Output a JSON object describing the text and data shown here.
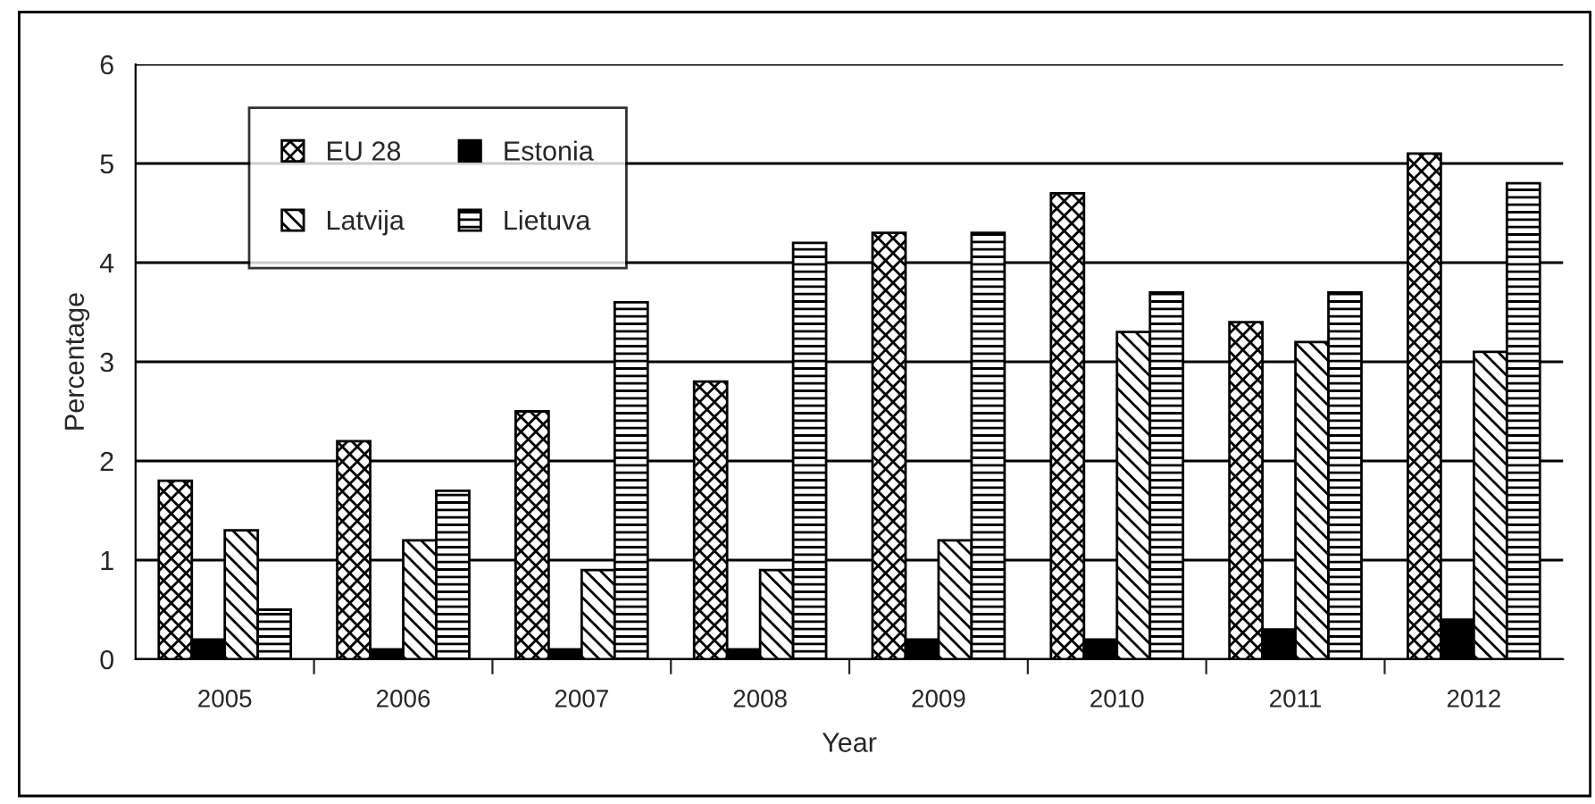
{
  "chart_data": {
    "type": "bar",
    "xlabel": "Year",
    "ylabel": "Percentage",
    "categories": [
      "2005",
      "2006",
      "2007",
      "2008",
      "2009",
      "2010",
      "2011",
      "2012"
    ],
    "series": [
      {
        "name": "EU 28",
        "color": "#000000",
        "values": [
          1.8,
          2.2,
          2.5,
          2.8,
          4.3,
          4.7,
          3.4,
          5.1
        ]
      },
      {
        "name": "Estonia",
        "color": "#000000",
        "values": [
          0.2,
          0.1,
          0.1,
          0.1,
          0.2,
          0.2,
          0.3,
          0.4
        ]
      },
      {
        "name": "Latvija",
        "color": "#000000",
        "values": [
          1.3,
          1.2,
          0.9,
          0.9,
          1.2,
          3.3,
          3.2,
          3.1
        ]
      },
      {
        "name": "Lietuva",
        "color": "#000000",
        "values": [
          0.5,
          1.7,
          3.6,
          4.2,
          4.3,
          3.7,
          3.7,
          4.8
        ]
      }
    ],
    "ylim": [
      0,
      6
    ],
    "yticks": [
      0,
      1,
      2,
      3,
      4,
      5,
      6
    ],
    "grid": "y",
    "legend": "top left"
  }
}
